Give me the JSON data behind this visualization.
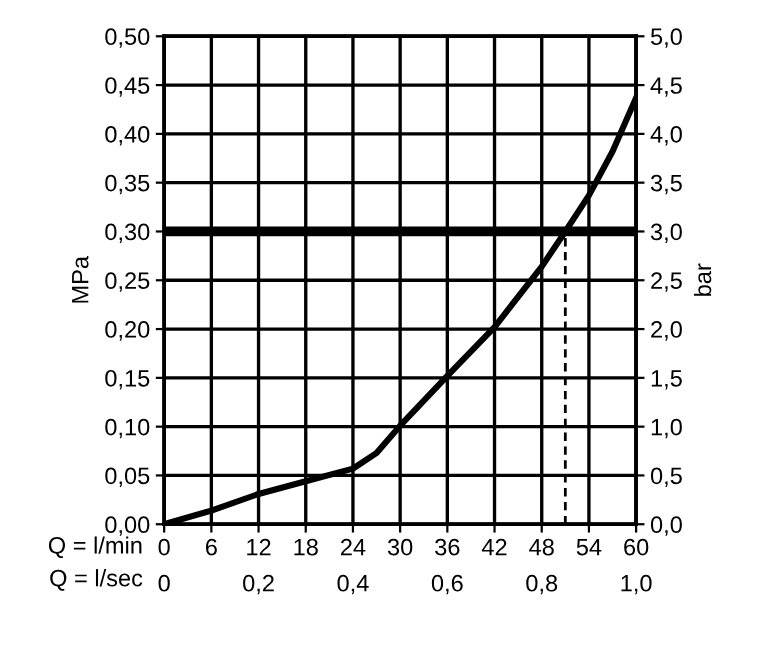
{
  "chart_data": {
    "type": "line",
    "xlabel": "Q = l/min",
    "x2label": "Q = l/sec",
    "ylabel": "MPa",
    "y2label": "bar",
    "x": [
      0,
      6,
      12,
      18,
      24,
      27,
      30,
      36,
      42,
      48,
      51,
      54,
      57,
      60
    ],
    "series": [
      {
        "color": "#000000",
        "values": [
          0,
          0.014,
          0.031,
          0.044,
          0.057,
          0.073,
          0.101,
          0.152,
          0.202,
          0.264,
          0.3,
          0.337,
          0.382,
          0.437
        ]
      }
    ],
    "xlim": [
      0,
      60
    ],
    "xticks": [
      0,
      6,
      12,
      18,
      24,
      30,
      36,
      42,
      48,
      54,
      60
    ],
    "x2lim": [
      0,
      1.0
    ],
    "x2ticks": [
      0,
      {
        "value": 0.2,
        "label": "0,2"
      },
      {
        "value": 0.4,
        "label": "0,4"
      },
      {
        "value": 0.6,
        "label": "0,6"
      },
      {
        "value": 0.8,
        "label": "0,8"
      },
      {
        "value": 1.0,
        "label": "1,0"
      }
    ],
    "ylim": [
      0,
      0.5
    ],
    "yticks": [
      {
        "value": 0,
        "label": "0,00"
      },
      {
        "value": 0.05,
        "label": "0,05"
      },
      {
        "value": 0.1,
        "label": "0,10"
      },
      {
        "value": 0.15,
        "label": "0,15"
      },
      {
        "value": 0.2,
        "label": "0,20"
      },
      {
        "value": 0.25,
        "label": "0,25"
      },
      {
        "value": 0.3,
        "label": "0,30"
      },
      {
        "value": 0.35,
        "label": "0,35"
      },
      {
        "value": 0.4,
        "label": "0,40"
      },
      {
        "value": 0.45,
        "label": "0,45"
      },
      {
        "value": 0.5,
        "label": "0,50"
      }
    ],
    "y2lim": [
      0,
      5.0
    ],
    "y2ticks": [
      {
        "value": 0,
        "label": "0,0"
      },
      {
        "value": 0.5,
        "label": "0,5"
      },
      {
        "value": 1.0,
        "label": "1,0"
      },
      {
        "value": 1.5,
        "label": "1,5"
      },
      {
        "value": 2.0,
        "label": "2,0"
      },
      {
        "value": 2.5,
        "label": "2,5"
      },
      {
        "value": 3.0,
        "label": "3,0"
      },
      {
        "value": 3.5,
        "label": "3,5"
      },
      {
        "value": 4.0,
        "label": "4,0"
      },
      {
        "value": 4.5,
        "label": "4,5"
      },
      {
        "value": 5.0,
        "label": "5,0"
      }
    ],
    "ref_lines": [
      {
        "axis": "y",
        "value": 0.3,
        "color": "#000000",
        "line_style": "solid"
      },
      {
        "axis": "x",
        "value": 51,
        "color": "#000000",
        "line_style": "dashed"
      }
    ],
    "grid": true,
    "marker": "none",
    "line_style": "solid"
  }
}
